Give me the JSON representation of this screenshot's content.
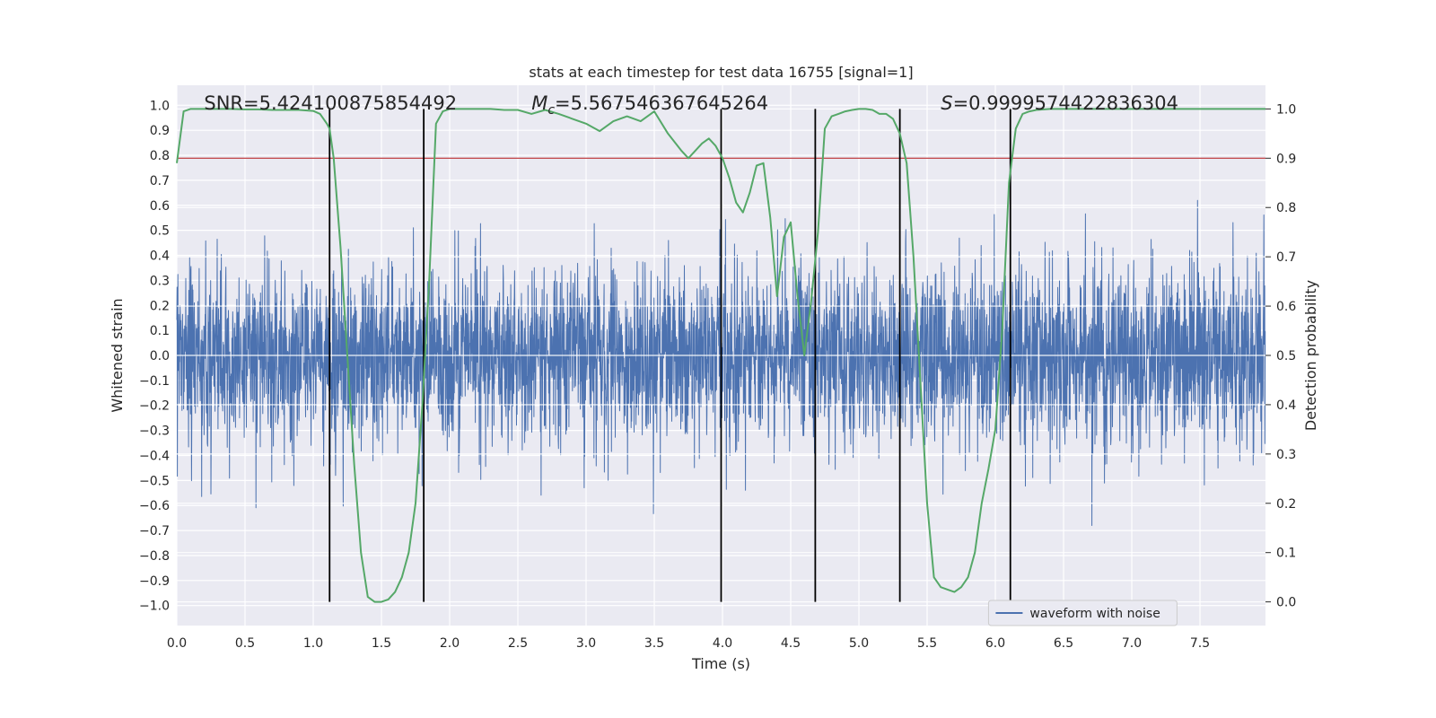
{
  "chart_data": {
    "type": "line",
    "title": "stats at each timestep for test data 16755 [signal=1]",
    "xlabel": "Time (s)",
    "ylabel": "Whitened strain",
    "y2label": "Detection probability",
    "xlim": [
      0.0,
      7.98
    ],
    "ylim": [
      -1.08,
      1.08
    ],
    "y2lim": [
      -0.048,
      1.048
    ],
    "xticks": [
      "0.0",
      "0.5",
      "1.0",
      "1.5",
      "2.0",
      "2.5",
      "3.0",
      "3.5",
      "4.0",
      "4.5",
      "5.0",
      "5.5",
      "6.0",
      "6.5",
      "7.0",
      "7.5"
    ],
    "yticks": [
      "1.0",
      "0.9",
      "0.8",
      "0.7",
      "0.6",
      "0.5",
      "0.4",
      "0.3",
      "0.2",
      "0.1",
      "0.0",
      "-0.1",
      "-0.2",
      "-0.3",
      "-0.4",
      "-0.5",
      "-0.6",
      "-0.7",
      "-0.8",
      "-0.9",
      "-1.0"
    ],
    "y2ticks": [
      "1.0",
      "0.9",
      "0.8",
      "0.7",
      "0.6",
      "0.5",
      "0.4",
      "0.3",
      "0.2",
      "0.1",
      "0.0"
    ],
    "annotations": {
      "snr_prefix": "SNR=",
      "snr_value": "5.424100875854492",
      "mc_symbol": "M",
      "mc_sub": "c",
      "mc_value": "=5.567546367645264",
      "s_symbol": "S",
      "s_value": "=0.9999574422836304"
    },
    "legend": {
      "label": "waveform with noise",
      "location": "lower-right"
    },
    "threshold": 0.9,
    "vlines": [
      1.12,
      1.81,
      3.99,
      4.68,
      5.3,
      6.11
    ],
    "probability_series": {
      "name": "Detection probability",
      "x": [
        0.0,
        0.05,
        0.1,
        0.2,
        0.3,
        0.4,
        0.5,
        0.6,
        0.7,
        0.8,
        0.9,
        1.0,
        1.05,
        1.1,
        1.12,
        1.15,
        1.2,
        1.25,
        1.3,
        1.35,
        1.4,
        1.45,
        1.5,
        1.55,
        1.6,
        1.65,
        1.7,
        1.75,
        1.8,
        1.85,
        1.9,
        1.95,
        2.0,
        2.1,
        2.2,
        2.3,
        2.4,
        2.5,
        2.6,
        2.7,
        2.8,
        2.9,
        3.0,
        3.1,
        3.2,
        3.3,
        3.4,
        3.5,
        3.6,
        3.7,
        3.75,
        3.8,
        3.85,
        3.9,
        3.95,
        4.0,
        4.05,
        4.1,
        4.15,
        4.2,
        4.25,
        4.3,
        4.35,
        4.4,
        4.45,
        4.5,
        4.55,
        4.6,
        4.65,
        4.7,
        4.75,
        4.8,
        4.85,
        4.9,
        4.95,
        5.0,
        5.05,
        5.1,
        5.15,
        5.2,
        5.25,
        5.3,
        5.35,
        5.4,
        5.45,
        5.5,
        5.55,
        5.6,
        5.65,
        5.7,
        5.75,
        5.8,
        5.85,
        5.9,
        5.95,
        6.0,
        6.05,
        6.1,
        6.15,
        6.2,
        6.25,
        6.3,
        6.4,
        6.5,
        6.6,
        6.8,
        7.0,
        7.2,
        7.4,
        7.6,
        7.8,
        7.98
      ],
      "values": [
        0.89,
        0.995,
        1.0,
        1.0,
        1.0,
        1.0,
        0.999,
        0.999,
        0.998,
        0.998,
        0.998,
        0.996,
        0.99,
        0.97,
        0.96,
        0.9,
        0.72,
        0.5,
        0.28,
        0.1,
        0.01,
        0.0,
        0.0,
        0.005,
        0.02,
        0.05,
        0.1,
        0.2,
        0.4,
        0.65,
        0.97,
        0.995,
        1.0,
        1.0,
        1.0,
        1.0,
        0.998,
        0.998,
        0.99,
        0.998,
        0.99,
        0.98,
        0.97,
        0.955,
        0.975,
        0.985,
        0.975,
        0.995,
        0.95,
        0.915,
        0.9,
        0.915,
        0.93,
        0.94,
        0.925,
        0.9,
        0.86,
        0.81,
        0.79,
        0.83,
        0.885,
        0.89,
        0.78,
        0.62,
        0.74,
        0.77,
        0.62,
        0.5,
        0.61,
        0.75,
        0.96,
        0.985,
        0.99,
        0.995,
        0.998,
        1.0,
        1.0,
        0.998,
        0.99,
        0.99,
        0.98,
        0.95,
        0.89,
        0.7,
        0.45,
        0.2,
        0.05,
        0.03,
        0.025,
        0.02,
        0.03,
        0.05,
        0.1,
        0.2,
        0.27,
        0.35,
        0.55,
        0.85,
        0.96,
        0.99,
        0.995,
        0.998,
        1.0,
        1.0,
        1.0,
        1.0,
        1.0,
        1.0,
        1.0,
        1.0,
        1.0,
        1.0
      ]
    },
    "waveform_series": {
      "name": "waveform with noise",
      "type": "dense-noise",
      "sample_interval_s": 0.002,
      "amplitude_std": 0.18,
      "seed": 16755,
      "x_range": [
        0.0,
        7.98
      ]
    },
    "colors": {
      "waveform": "#4c72b0",
      "probability": "#55a868",
      "threshold": "#c44e52",
      "vline": "#000000",
      "plot_bg": "#eaeaf2",
      "grid": "#ffffff"
    }
  }
}
